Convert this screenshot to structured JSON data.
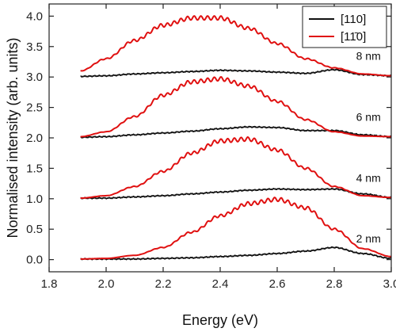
{
  "chart_data": {
    "type": "line",
    "xlabel": "Energy (eV)",
    "ylabel": "Normalised intensity (arb. units)",
    "xlim": [
      1.8,
      3.0
    ],
    "ylim": [
      -0.2,
      4.2
    ],
    "xticks": [
      1.8,
      2.0,
      2.2,
      2.4,
      2.6,
      2.8,
      3.0
    ],
    "yticks": [
      0.0,
      0.5,
      1.0,
      1.5,
      2.0,
      2.5,
      3.0,
      3.5,
      4.0
    ],
    "xtick_labels": [
      "1.8",
      "2.0",
      "2.2",
      "2.4",
      "2.6",
      "2.8",
      "3.0"
    ],
    "ytick_labels": [
      "0.0",
      "0.5",
      "1.0",
      "1.5",
      "2.0",
      "2.5",
      "3.0",
      "3.5",
      "4.0"
    ],
    "grid": false,
    "legend_position": "top-right",
    "legend": [
      {
        "label": "[110]",
        "color": "#111111"
      },
      {
        "label": "[11̄0]",
        "color": "#e01010"
      }
    ],
    "annotations": [
      {
        "text": "8 nm",
        "x": 2.92,
        "y": 3.28
      },
      {
        "text": "6 nm",
        "x": 2.92,
        "y": 2.28
      },
      {
        "text": "4 nm",
        "x": 2.92,
        "y": 1.28
      },
      {
        "text": "2 nm",
        "x": 2.92,
        "y": 0.28
      }
    ],
    "series": [
      {
        "color": "#111111",
        "x": [
          1.91,
          2.0,
          2.1,
          2.2,
          2.3,
          2.4,
          2.5,
          2.6,
          2.7,
          2.8,
          2.9,
          3.0
        ],
        "y": [
          3.01,
          3.02,
          3.05,
          3.07,
          3.09,
          3.11,
          3.1,
          3.08,
          3.06,
          3.12,
          3.04,
          3.02
        ]
      },
      {
        "color": "#e01010",
        "x": [
          1.91,
          2.0,
          2.1,
          2.2,
          2.3,
          2.4,
          2.5,
          2.6,
          2.7,
          2.8,
          2.9,
          3.0
        ],
        "y": [
          3.1,
          3.3,
          3.6,
          3.85,
          3.97,
          3.97,
          3.8,
          3.55,
          3.3,
          3.15,
          3.05,
          3.02
        ]
      },
      {
        "color": "#111111",
        "x": [
          1.91,
          2.0,
          2.1,
          2.2,
          2.3,
          2.4,
          2.5,
          2.6,
          2.7,
          2.8,
          2.9,
          3.0
        ],
        "y": [
          2.01,
          2.02,
          2.05,
          2.08,
          2.11,
          2.15,
          2.18,
          2.17,
          2.12,
          2.12,
          2.05,
          2.02
        ]
      },
      {
        "color": "#e01010",
        "x": [
          1.91,
          2.0,
          2.1,
          2.2,
          2.3,
          2.4,
          2.5,
          2.6,
          2.7,
          2.8,
          2.9,
          3.0
        ],
        "y": [
          2.02,
          2.1,
          2.35,
          2.7,
          2.92,
          2.97,
          2.85,
          2.6,
          2.3,
          2.1,
          2.03,
          2.02
        ]
      },
      {
        "color": "#111111",
        "x": [
          1.91,
          2.0,
          2.1,
          2.2,
          2.3,
          2.4,
          2.5,
          2.6,
          2.7,
          2.8,
          2.9,
          3.0
        ],
        "y": [
          1.01,
          1.01,
          1.03,
          1.05,
          1.08,
          1.11,
          1.14,
          1.16,
          1.15,
          1.16,
          1.08,
          1.02
        ]
      },
      {
        "color": "#e01010",
        "x": [
          1.91,
          2.0,
          2.1,
          2.2,
          2.3,
          2.4,
          2.5,
          2.6,
          2.7,
          2.8,
          2.9,
          3.0
        ],
        "y": [
          1.01,
          1.05,
          1.2,
          1.45,
          1.75,
          1.95,
          1.98,
          1.8,
          1.5,
          1.2,
          1.05,
          1.02
        ]
      },
      {
        "color": "#111111",
        "x": [
          1.91,
          2.0,
          2.1,
          2.2,
          2.3,
          2.4,
          2.5,
          2.6,
          2.7,
          2.8,
          2.9,
          3.0
        ],
        "y": [
          0.01,
          0.01,
          0.01,
          0.02,
          0.03,
          0.05,
          0.07,
          0.1,
          0.14,
          0.2,
          0.1,
          0.02
        ]
      },
      {
        "color": "#e01010",
        "x": [
          1.91,
          2.0,
          2.1,
          2.2,
          2.3,
          2.4,
          2.5,
          2.6,
          2.7,
          2.8,
          2.9,
          3.0
        ],
        "y": [
          0.01,
          0.02,
          0.07,
          0.2,
          0.45,
          0.72,
          0.92,
          0.99,
          0.85,
          0.5,
          0.18,
          0.05
        ]
      }
    ]
  }
}
